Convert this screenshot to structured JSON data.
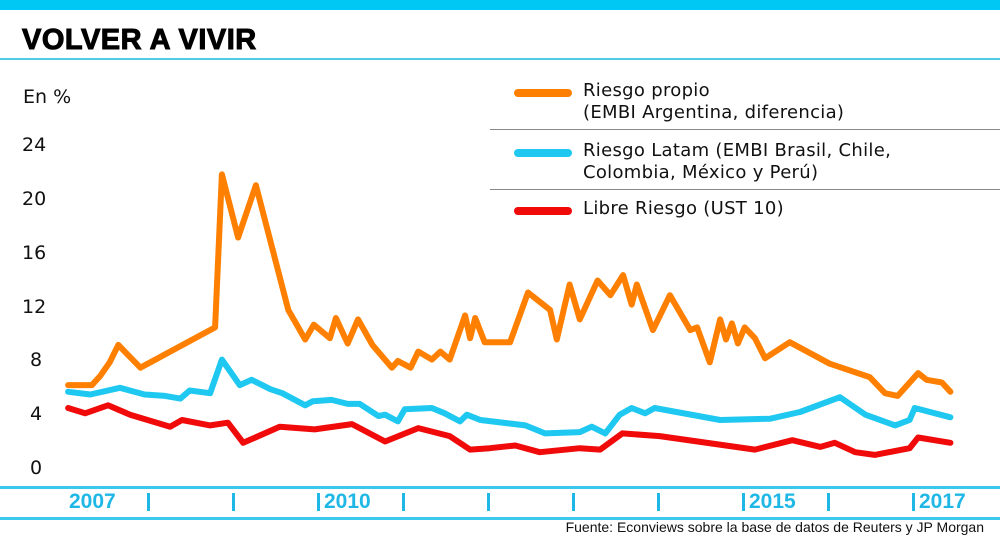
{
  "title": "VOLVER A VIVIR",
  "source": "Fuente: Econviews sobre la base de datos de Reuters y JP Morgan",
  "chart_data": {
    "type": "line",
    "title": "VOLVER A VIVIR",
    "ylabel": "En %",
    "ylim": [
      0,
      24
    ],
    "yticks": [
      "24",
      "20",
      "16",
      "12",
      "8",
      "4",
      "0"
    ],
    "xlim": [
      2007,
      2017.5
    ],
    "xtick_years": [
      2008,
      2009,
      2010,
      2011,
      2012,
      2013,
      2014,
      2015,
      2016,
      2017
    ],
    "xlabels": [
      {
        "label": "2007",
        "year": 2007
      },
      {
        "label": "2010",
        "year": 2010
      },
      {
        "label": "2015",
        "year": 2015
      },
      {
        "label": "2017",
        "year": 2017
      }
    ],
    "grid": false,
    "legend_position": "top-right",
    "series": [
      {
        "name": "Riesgo propio",
        "name_line2": "(EMBI Argentina, diferencia)",
        "color": "#ff8000",
        "x": [
          2007.06,
          2007.34,
          2007.44,
          2007.55,
          2007.65,
          2007.91,
          2008.79,
          2008.87,
          2009.06,
          2009.27,
          2009.65,
          2009.85,
          2009.95,
          2010.14,
          2010.21,
          2010.35,
          2010.47,
          2010.64,
          2010.87,
          2010.94,
          2011.09,
          2011.18,
          2011.34,
          2011.44,
          2011.55,
          2011.73,
          2011.79,
          2011.85,
          2011.96,
          2012.26,
          2012.47,
          2012.73,
          2012.81,
          2012.96,
          2013.08,
          2013.29,
          2013.44,
          2013.59,
          2013.69,
          2013.75,
          2013.94,
          2014.14,
          2014.38,
          2014.46,
          2014.61,
          2014.73,
          2014.8,
          2014.87,
          2014.94,
          2015.02,
          2015.14,
          2015.26,
          2015.55,
          2016.02,
          2016.49,
          2016.67,
          2016.82,
          2017.06,
          2017.16,
          2017.34,
          2017.44
        ],
        "values": [
          6.1,
          6.1,
          6.8,
          7.8,
          9.1,
          7.4,
          10.4,
          21.8,
          17.1,
          21.0,
          11.7,
          9.5,
          10.6,
          9.6,
          11.1,
          9.2,
          11.0,
          9.1,
          7.4,
          7.9,
          7.4,
          8.6,
          8.0,
          8.6,
          8.0,
          11.3,
          9.6,
          11.1,
          9.3,
          9.3,
          13.0,
          11.7,
          9.5,
          13.6,
          11.0,
          13.9,
          12.8,
          14.3,
          12.1,
          13.6,
          10.2,
          12.8,
          10.2,
          10.4,
          7.8,
          11.0,
          9.5,
          10.7,
          9.2,
          10.4,
          9.6,
          8.1,
          9.3,
          7.7,
          6.7,
          5.5,
          5.3,
          7.0,
          6.5,
          6.3,
          5.6
        ]
      },
      {
        "name": "Riesgo Latam (EMBI Brasil, Chile,",
        "name_line2": "Colombia, México y Perú)",
        "color": "#1ec8f0",
        "x": [
          2007.06,
          2007.32,
          2007.67,
          2007.96,
          2008.2,
          2008.38,
          2008.49,
          2008.73,
          2008.87,
          2009.08,
          2009.22,
          2009.44,
          2009.58,
          2009.85,
          2009.94,
          2010.16,
          2010.35,
          2010.49,
          2010.71,
          2010.79,
          2010.94,
          2011.02,
          2011.34,
          2011.49,
          2011.67,
          2011.75,
          2011.91,
          2012.44,
          2012.67,
          2013.08,
          2013.22,
          2013.38,
          2013.55,
          2013.69,
          2013.85,
          2013.96,
          2014.73,
          2015.32,
          2015.67,
          2016.14,
          2016.44,
          2016.79,
          2016.96,
          2017.02,
          2017.44
        ],
        "values": [
          5.6,
          5.4,
          5.9,
          5.4,
          5.3,
          5.1,
          5.7,
          5.5,
          8.0,
          6.1,
          6.5,
          5.8,
          5.5,
          4.6,
          4.9,
          5.0,
          4.7,
          4.7,
          3.8,
          3.9,
          3.4,
          4.3,
          4.4,
          4.0,
          3.4,
          3.9,
          3.5,
          3.1,
          2.5,
          2.6,
          3.0,
          2.5,
          3.9,
          4.4,
          4.0,
          4.4,
          3.5,
          3.6,
          4.1,
          5.2,
          3.9,
          3.1,
          3.5,
          4.4,
          3.7
        ]
      },
      {
        "name": "Libre Riesgo (UST 10)",
        "name_line2": "",
        "color": "#f00a0a",
        "x": [
          2007.06,
          2007.26,
          2007.53,
          2007.79,
          2008.26,
          2008.4,
          2008.73,
          2008.94,
          2009.12,
          2009.55,
          2009.96,
          2010.4,
          2010.79,
          2011.18,
          2011.55,
          2011.79,
          2012.02,
          2012.32,
          2012.61,
          2013.08,
          2013.32,
          2013.58,
          2014.02,
          2015.14,
          2015.58,
          2015.91,
          2016.08,
          2016.32,
          2016.55,
          2016.96,
          2017.06,
          2017.44
        ],
        "values": [
          4.4,
          4.0,
          4.6,
          3.9,
          3.0,
          3.5,
          3.1,
          3.3,
          1.8,
          3.0,
          2.8,
          3.2,
          1.9,
          2.9,
          2.3,
          1.3,
          1.4,
          1.6,
          1.1,
          1.4,
          1.3,
          2.5,
          2.3,
          1.3,
          2.0,
          1.5,
          1.8,
          1.1,
          0.9,
          1.4,
          2.2,
          1.8
        ]
      }
    ]
  }
}
